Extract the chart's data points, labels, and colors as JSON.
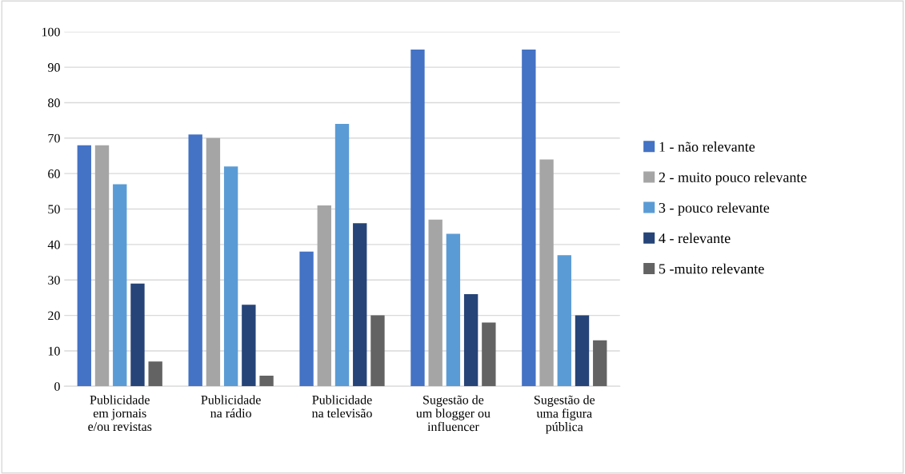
{
  "chart_data": {
    "type": "bar",
    "categories": [
      "Publicidade\nem jornais\ne/ou revistas",
      "Publicidade\nna rádio",
      "Publicidade\nna televisão",
      "Sugestão de\num blogger ou\ninfluencer",
      "Sugestão de\numa figura\npública"
    ],
    "series": [
      {
        "name": "1 - não relevante",
        "color": "#4472c4",
        "values": [
          68,
          71,
          38,
          95,
          95
        ]
      },
      {
        "name": "2 - muito pouco relevante",
        "color": "#a5a5a5",
        "values": [
          68,
          70,
          51,
          47,
          64
        ]
      },
      {
        "name": "3 - pouco relevante",
        "color": "#5b9bd5",
        "values": [
          57,
          62,
          74,
          43,
          37
        ]
      },
      {
        "name": "4 - relevante",
        "color": "#264478",
        "values": [
          29,
          23,
          46,
          26,
          20
        ]
      },
      {
        "name": "5 -muito relevante",
        "color": "#636363",
        "values": [
          7,
          3,
          20,
          18,
          13
        ]
      }
    ],
    "ylim": [
      0,
      100
    ],
    "yticks": [
      0,
      10,
      20,
      30,
      40,
      50,
      60,
      70,
      80,
      90,
      100
    ],
    "grid": "y",
    "legend": "right"
  }
}
